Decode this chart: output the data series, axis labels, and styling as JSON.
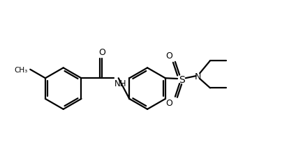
{
  "bg_color": "#ffffff",
  "line_color": "#000000",
  "line_width": 1.6,
  "fig_width": 4.24,
  "fig_height": 2.28,
  "dpi": 100,
  "xlim": [
    -2.6,
    2.8
  ],
  "ylim": [
    -1.1,
    1.1
  ]
}
